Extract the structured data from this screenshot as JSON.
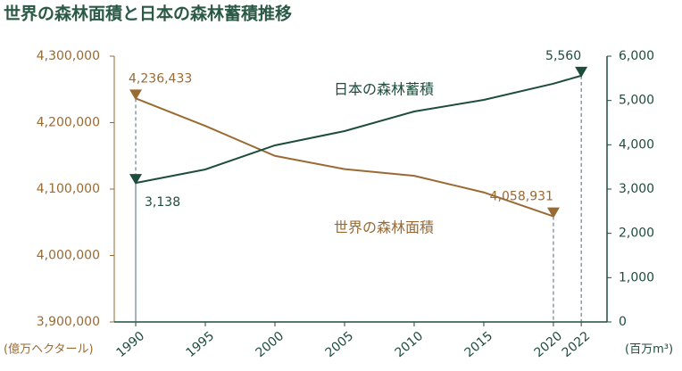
{
  "chart_data": {
    "type": "line",
    "title": "世界の森林面積と日本の森林蓄積推移",
    "y_label": "(億万ヘクタール)",
    "y2_label": "(百万m³)",
    "xlim": [
      1988.46,
      2023.85
    ],
    "xticks": [
      1990,
      1995,
      2000,
      2005,
      2010,
      2015,
      2020,
      2022
    ],
    "ylim": [
      3900000,
      4300000
    ],
    "yticks": [
      {
        "value": 3900000,
        "label": "3,900,000"
      },
      {
        "value": 4000000,
        "label": "4,000,000"
      },
      {
        "value": 4100000,
        "label": "4,100,000"
      },
      {
        "value": 4200000,
        "label": "4,200,000"
      },
      {
        "value": 4300000,
        "label": "4,300,000"
      }
    ],
    "y2lim": [
      0,
      6000
    ],
    "y2ticks": [
      0,
      {
        "value": 1000,
        "label": "1,000"
      },
      {
        "value": 2000,
        "label": "2,000"
      },
      {
        "value": 3000,
        "label": "3,000"
      },
      {
        "value": 4000,
        "label": "4,000"
      },
      {
        "value": 5000,
        "label": "5,000"
      },
      {
        "value": 6000,
        "label": "6,000"
      }
    ],
    "series": [
      {
        "name": "世界の森林面積",
        "color": "#9a6a33",
        "x": [
          1990,
          1995,
          2000,
          2005,
          2010,
          2015,
          2020
        ],
        "values": [
          4236433,
          4195000,
          4150000,
          4130000,
          4120000,
          4095000,
          4058931
        ],
        "value_labels": [
          "4,236,433",
          null,
          null,
          null,
          null,
          null,
          "4,058,931"
        ]
      },
      {
        "name": "日本の森林蓄積",
        "color": "#1e4d3b",
        "axis": "y2",
        "x": [
          1990,
          1995,
          2000,
          2005,
          2010,
          2015,
          2020,
          2022
        ],
        "values": [
          3138,
          3443,
          3987,
          4309,
          4752,
          5014,
          5380,
          5560
        ],
        "value_labels": [
          "3,138",
          null,
          null,
          null,
          null,
          null,
          null,
          "5,560"
        ]
      }
    ]
  }
}
